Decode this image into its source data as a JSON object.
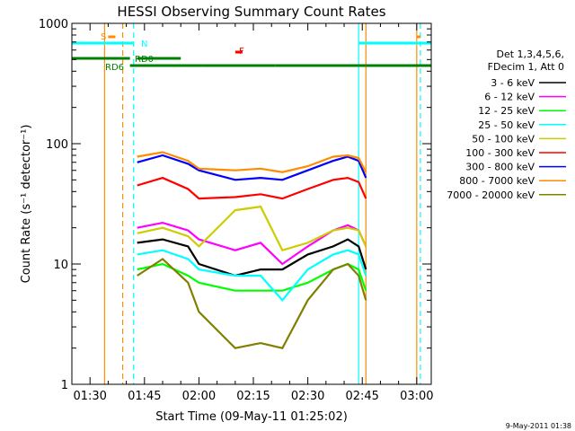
{
  "chart_data": {
    "type": "line",
    "title": "HESSI Observing Summary Count Rates",
    "xlabel": "Start Time (09-May-11 01:25:02)",
    "ylabel": "Count Rate (s⁻¹ detector⁻¹)",
    "yscale": "log",
    "ylim": [
      1,
      1000
    ],
    "xlim": [
      "01:25",
      "03:04"
    ],
    "x_ticks": [
      "01:30",
      "01:45",
      "02:00",
      "02:15",
      "02:30",
      "02:45",
      "03:00"
    ],
    "y_ticks": [
      "1",
      "10",
      "100",
      "1000"
    ],
    "footer": "9-May-2011 01:38",
    "legend": {
      "header": [
        "Det 1,3,4,5,6,",
        "FDecim 1, Att 0"
      ],
      "placement": "right"
    },
    "flags": [
      {
        "label": "S",
        "color": "#ff8c00",
        "segments": [
          [
            "01:35",
            "01:37"
          ],
          [
            "03:00",
            "03:01"
          ]
        ]
      },
      {
        "label": "N",
        "color": "#00ffff",
        "segments": [
          [
            "01:25",
            "01:42"
          ],
          [
            "02:44",
            "03:04"
          ]
        ]
      },
      {
        "label": "F",
        "color": "#ff0000",
        "segments": [
          [
            "02:10",
            "02:12"
          ]
        ]
      },
      {
        "label": "RD0",
        "color": "#008000",
        "segments": [
          [
            "01:25",
            "01:41"
          ],
          [
            "01:43",
            "01:55"
          ]
        ]
      },
      {
        "label": "RD6",
        "color": "#008000",
        "segments": [
          [
            "01:41",
            "02:01"
          ],
          [
            "02:01",
            "02:21"
          ],
          [
            "02:21",
            "02:46"
          ],
          [
            "02:46",
            "03:04"
          ]
        ]
      }
    ],
    "series": [
      {
        "name": "3 - 6 keV",
        "color": "#000000",
        "x": [
          "01:43",
          "01:50",
          "01:57",
          "02:00",
          "02:10",
          "02:17",
          "02:23",
          "02:30",
          "02:37",
          "02:41",
          "02:44",
          "02:46"
        ],
        "values": [
          15,
          16,
          14,
          10,
          8,
          9,
          9,
          12,
          14,
          16,
          14,
          9
        ]
      },
      {
        "name": "6 - 12 keV",
        "color": "#ff00ff",
        "x": [
          "01:43",
          "01:50",
          "01:57",
          "02:00",
          "02:10",
          "02:17",
          "02:23",
          "02:30",
          "02:37",
          "02:41",
          "02:44",
          "02:46"
        ],
        "values": [
          20,
          22,
          19,
          16,
          13,
          15,
          10,
          14,
          19,
          21,
          19,
          14
        ]
      },
      {
        "name": "12 - 25 keV",
        "color": "#00ff00",
        "x": [
          "01:43",
          "01:50",
          "01:57",
          "02:00",
          "02:10",
          "02:17",
          "02:23",
          "02:30",
          "02:37",
          "02:41",
          "02:44",
          "02:46"
        ],
        "values": [
          9,
          10,
          8,
          7,
          6,
          6,
          6,
          7,
          9,
          10,
          9,
          6
        ]
      },
      {
        "name": "25 - 50 keV",
        "color": "#00ffff",
        "x": [
          "01:43",
          "01:50",
          "01:57",
          "02:00",
          "02:10",
          "02:17",
          "02:23",
          "02:30",
          "02:37",
          "02:41",
          "02:44",
          "02:46"
        ],
        "values": [
          12,
          13,
          11,
          9,
          8,
          8,
          5,
          9,
          12,
          13,
          12,
          8
        ]
      },
      {
        "name": "50 - 100 keV",
        "color": "#cccc00",
        "x": [
          "01:43",
          "01:50",
          "01:57",
          "02:00",
          "02:10",
          "02:17",
          "02:23",
          "02:30",
          "02:37",
          "02:41",
          "02:44",
          "02:46"
        ],
        "values": [
          18,
          20,
          17,
          14,
          28,
          30,
          13,
          15,
          19,
          20,
          19,
          14
        ]
      },
      {
        "name": "100 - 300 keV",
        "color": "#ff0000",
        "x": [
          "01:43",
          "01:50",
          "01:57",
          "02:00",
          "02:10",
          "02:17",
          "02:23",
          "02:30",
          "02:37",
          "02:41",
          "02:44",
          "02:46"
        ],
        "values": [
          45,
          52,
          42,
          35,
          36,
          38,
          35,
          42,
          50,
          52,
          48,
          35
        ]
      },
      {
        "name": "300 - 800 keV",
        "color": "#0000ff",
        "x": [
          "01:43",
          "01:50",
          "01:57",
          "02:00",
          "02:10",
          "02:17",
          "02:23",
          "02:30",
          "02:37",
          "02:41",
          "02:44",
          "02:46"
        ],
        "values": [
          70,
          80,
          68,
          60,
          50,
          52,
          50,
          60,
          72,
          78,
          72,
          52
        ]
      },
      {
        "name": "800 - 7000 keV",
        "color": "#ff8c00",
        "x": [
          "01:43",
          "01:50",
          "01:57",
          "02:00",
          "02:10",
          "02:17",
          "02:23",
          "02:30",
          "02:37",
          "02:41",
          "02:44",
          "02:46"
        ],
        "values": [
          78,
          85,
          72,
          62,
          60,
          62,
          58,
          65,
          78,
          80,
          76,
          58
        ]
      },
      {
        "name": "7000 - 20000 keV",
        "color": "#808000",
        "x": [
          "01:43",
          "01:50",
          "01:57",
          "02:00",
          "02:10",
          "02:17",
          "02:23",
          "02:30",
          "02:37",
          "02:41",
          "02:44",
          "02:46"
        ],
        "values": [
          8,
          11,
          7,
          4,
          2,
          2.2,
          2,
          5,
          9,
          10,
          8,
          5
        ]
      }
    ],
    "vertical_markers": [
      {
        "x": "01:34",
        "color": "#ff8c00",
        "style": "solid"
      },
      {
        "x": "01:39",
        "color": "#ff8c00",
        "style": "dashed"
      },
      {
        "x": "01:42",
        "color": "#00ffff",
        "style": "dashed"
      },
      {
        "x": "02:44",
        "color": "#00ffff",
        "style": "solid"
      },
      {
        "x": "02:46",
        "color": "#ff8c00",
        "style": "solid"
      },
      {
        "x": "03:00",
        "color": "#ff8c00",
        "style": "solid"
      },
      {
        "x": "03:01",
        "color": "#00ffff",
        "style": "dashed"
      }
    ]
  }
}
